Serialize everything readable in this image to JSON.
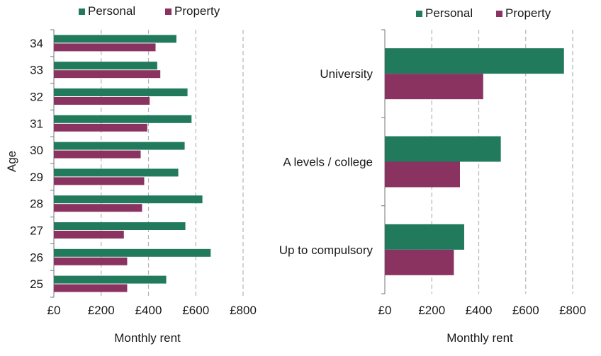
{
  "colors": {
    "personal": "#217a5b",
    "property": "#8b3360",
    "grid": "#b5b5b5",
    "axis": "#8c8c8c"
  },
  "chart_data": [
    {
      "type": "bar",
      "orientation": "horizontal",
      "ylabel": "Age",
      "xlabel": "Monthly rent",
      "categories": [
        "34",
        "33",
        "32",
        "31",
        "30",
        "29",
        "28",
        "27",
        "26",
        "25"
      ],
      "x_ticks": [
        "£0",
        "£200",
        "£400",
        "£600",
        "£800"
      ],
      "xlim": [
        0,
        800
      ],
      "grid": "vertical dashed",
      "legend": "top",
      "series": [
        {
          "name": "Personal",
          "values": [
            518,
            437,
            565,
            582,
            553,
            526,
            628,
            556,
            663,
            475
          ]
        },
        {
          "name": "Property",
          "values": [
            430,
            450,
            405,
            395,
            367,
            382,
            373,
            296,
            310,
            310
          ]
        }
      ]
    },
    {
      "type": "bar",
      "orientation": "horizontal",
      "ylabel": "",
      "xlabel": "Monthly rent",
      "categories": [
        "University",
        "A levels / college",
        "Up to compulsory"
      ],
      "x_ticks": [
        "£0",
        "£200",
        "£400",
        "£600",
        "£800"
      ],
      "xlim": [
        0,
        800
      ],
      "grid": "vertical dashed",
      "legend": "top",
      "series": [
        {
          "name": "Personal",
          "values": [
            763,
            494,
            338
          ]
        },
        {
          "name": "Property",
          "values": [
            419,
            320,
            294
          ]
        }
      ]
    }
  ]
}
